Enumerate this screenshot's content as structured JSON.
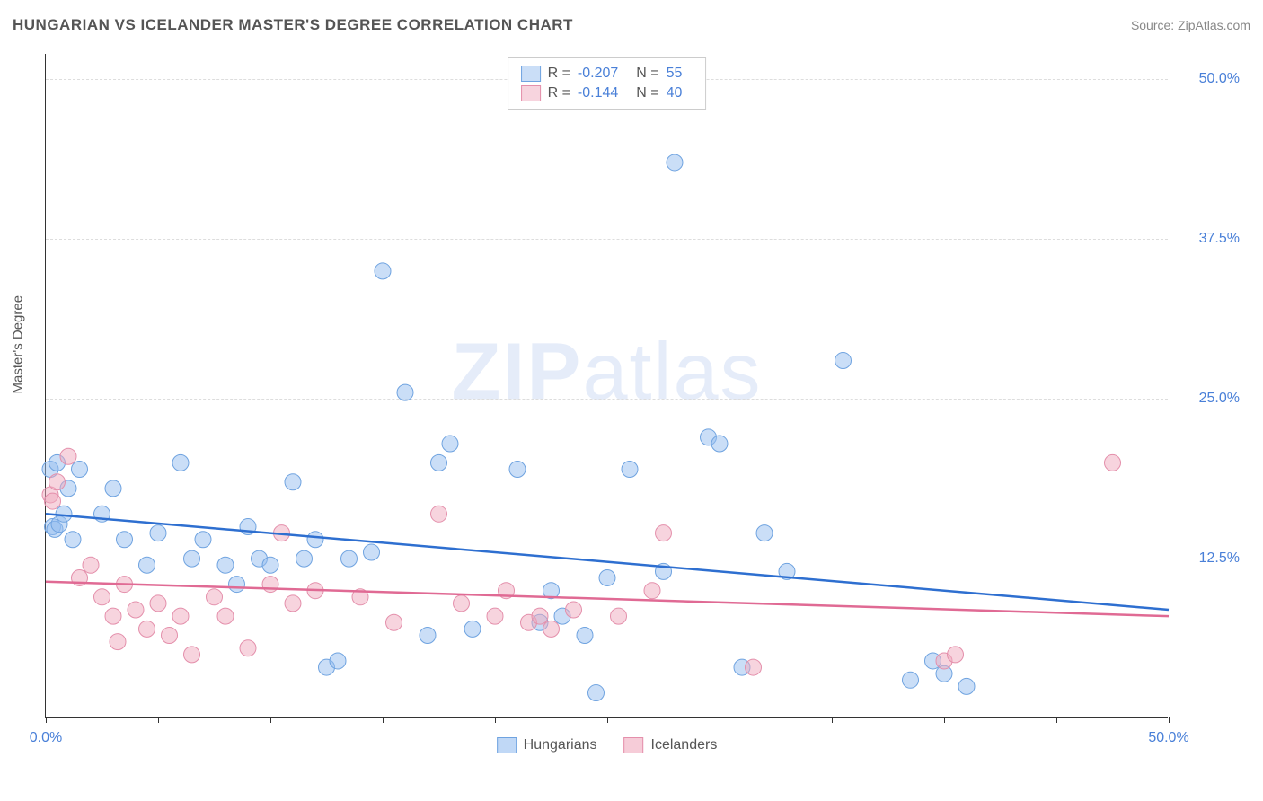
{
  "header": {
    "title": "HUNGARIAN VS ICELANDER MASTER'S DEGREE CORRELATION CHART",
    "source": "Source: ZipAtlas.com"
  },
  "chart": {
    "type": "scatter",
    "ylabel": "Master's Degree",
    "watermark_bold": "ZIP",
    "watermark_light": "atlas",
    "background_color": "#ffffff",
    "grid_color": "#dddddd",
    "axis_color": "#333333",
    "xlim": [
      0,
      50
    ],
    "ylim": [
      0,
      52
    ],
    "xtick_positions": [
      0,
      5,
      10,
      15,
      20,
      25,
      30,
      35,
      40,
      45,
      50
    ],
    "xtick_labels": {
      "0": "0.0%",
      "50": "50.0%"
    },
    "ytick_positions": [
      12.5,
      25.0,
      37.5,
      50.0
    ],
    "ytick_labels": [
      "12.5%",
      "25.0%",
      "37.5%",
      "50.0%"
    ],
    "series": [
      {
        "name": "Hungarians",
        "fill": "rgba(150,190,240,0.5)",
        "stroke": "#6fa3e0",
        "line_color": "#2e6fd0",
        "marker_r": 9,
        "R_label": "R =",
        "R_value": "-0.207",
        "N_label": "N =",
        "N_value": "55",
        "trend": {
          "x1": 0,
          "y1": 16.0,
          "x2": 50,
          "y2": 8.5
        },
        "points": [
          [
            0.2,
            19.5
          ],
          [
            0.3,
            15.0
          ],
          [
            0.5,
            20.0
          ],
          [
            0.4,
            14.8
          ],
          [
            1.0,
            18.0
          ],
          [
            1.2,
            14.0
          ],
          [
            1.5,
            19.5
          ],
          [
            2.5,
            16.0
          ],
          [
            3.0,
            18.0
          ],
          [
            3.5,
            14.0
          ],
          [
            4.5,
            12.0
          ],
          [
            5.0,
            14.5
          ],
          [
            6.0,
            20.0
          ],
          [
            6.5,
            12.5
          ],
          [
            7.0,
            14.0
          ],
          [
            8.0,
            12.0
          ],
          [
            8.5,
            10.5
          ],
          [
            9.0,
            15.0
          ],
          [
            9.5,
            12.5
          ],
          [
            10.0,
            12.0
          ],
          [
            11.0,
            18.5
          ],
          [
            11.5,
            12.5
          ],
          [
            12.0,
            14.0
          ],
          [
            12.5,
            4.0
          ],
          [
            13.0,
            4.5
          ],
          [
            13.5,
            12.5
          ],
          [
            14.5,
            13.0
          ],
          [
            15.0,
            35.0
          ],
          [
            16.0,
            25.5
          ],
          [
            17.0,
            6.5
          ],
          [
            17.5,
            20.0
          ],
          [
            18.0,
            21.5
          ],
          [
            19.0,
            7.0
          ],
          [
            21.0,
            19.5
          ],
          [
            22.0,
            7.5
          ],
          [
            22.5,
            10.0
          ],
          [
            23.0,
            8.0
          ],
          [
            24.0,
            6.5
          ],
          [
            24.5,
            2.0
          ],
          [
            25.0,
            11.0
          ],
          [
            26.0,
            19.5
          ],
          [
            27.5,
            11.5
          ],
          [
            28.0,
            43.5
          ],
          [
            29.5,
            22.0
          ],
          [
            30.0,
            21.5
          ],
          [
            31.0,
            4.0
          ],
          [
            32.0,
            14.5
          ],
          [
            33.0,
            11.5
          ],
          [
            35.5,
            28.0
          ],
          [
            38.5,
            3.0
          ],
          [
            39.5,
            4.5
          ],
          [
            40.0,
            3.5
          ],
          [
            41.0,
            2.5
          ],
          [
            0.6,
            15.2
          ],
          [
            0.8,
            16.0
          ]
        ]
      },
      {
        "name": "Icelanders",
        "fill": "rgba(240,170,190,0.5)",
        "stroke": "#e48fab",
        "line_color": "#e06a94",
        "marker_r": 9,
        "R_label": "R =",
        "R_value": "-0.144",
        "N_label": "N =",
        "N_value": "40",
        "trend": {
          "x1": 0,
          "y1": 10.7,
          "x2": 50,
          "y2": 8.0
        },
        "points": [
          [
            0.2,
            17.5
          ],
          [
            0.5,
            18.5
          ],
          [
            1.0,
            20.5
          ],
          [
            1.5,
            11.0
          ],
          [
            2.0,
            12.0
          ],
          [
            2.5,
            9.5
          ],
          [
            3.0,
            8.0
          ],
          [
            3.2,
            6.0
          ],
          [
            3.5,
            10.5
          ],
          [
            4.0,
            8.5
          ],
          [
            4.5,
            7.0
          ],
          [
            5.0,
            9.0
          ],
          [
            5.5,
            6.5
          ],
          [
            6.0,
            8.0
          ],
          [
            6.5,
            5.0
          ],
          [
            7.5,
            9.5
          ],
          [
            8.0,
            8.0
          ],
          [
            9.0,
            5.5
          ],
          [
            10.0,
            10.5
          ],
          [
            10.5,
            14.5
          ],
          [
            11.0,
            9.0
          ],
          [
            12.0,
            10.0
          ],
          [
            14.0,
            9.5
          ],
          [
            15.5,
            7.5
          ],
          [
            17.5,
            16.0
          ],
          [
            18.5,
            9.0
          ],
          [
            20.0,
            8.0
          ],
          [
            20.5,
            10.0
          ],
          [
            21.5,
            7.5
          ],
          [
            22.0,
            8.0
          ],
          [
            22.5,
            7.0
          ],
          [
            23.5,
            8.5
          ],
          [
            25.5,
            8.0
          ],
          [
            27.0,
            10.0
          ],
          [
            27.5,
            14.5
          ],
          [
            31.5,
            4.0
          ],
          [
            40.0,
            4.5
          ],
          [
            40.5,
            5.0
          ],
          [
            47.5,
            20.0
          ],
          [
            0.3,
            17.0
          ]
        ]
      }
    ],
    "legend_bottom": [
      {
        "label": "Hungarians",
        "fill": "rgba(150,190,240,0.6)",
        "stroke": "#6fa3e0"
      },
      {
        "label": "Icelanders",
        "fill": "rgba(240,170,190,0.6)",
        "stroke": "#e48fab"
      }
    ]
  }
}
